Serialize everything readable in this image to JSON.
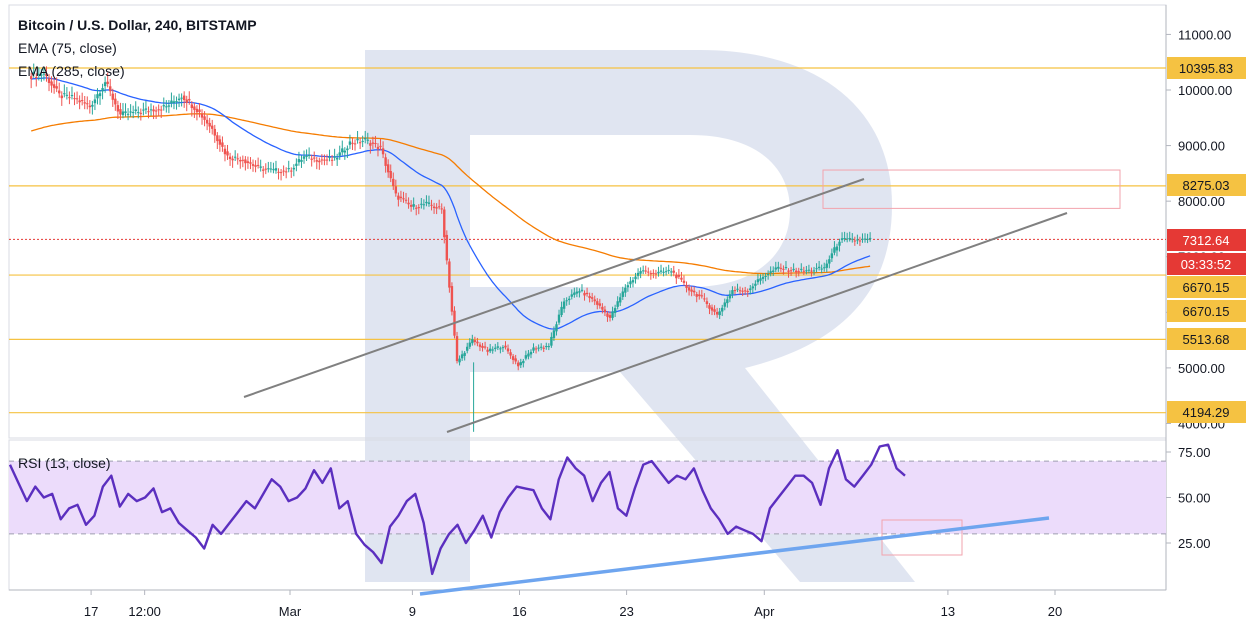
{
  "legend": {
    "symbol": "Bitcoin / U.S. Dollar, 240, BITSTAMP",
    "ema1": "EMA (75, close)",
    "ema2": "EMA (285, close)",
    "rsi": "RSI (13, close)"
  },
  "colors": {
    "up": "#26a69a",
    "down": "#ef5350",
    "ema75": "#2962ff",
    "ema285": "#f57c00",
    "level": "#f5c242",
    "current": "#e53935",
    "channel": "#808080",
    "rsi_line": "#5b2fbf",
    "rsi_band": "#ecdcfb",
    "rsi_trend": "#6ea5ef",
    "target_box": "#f2a3ad",
    "watermark": "#d6dcec"
  },
  "chart_data": [
    {
      "type": "candlestick",
      "title": "Bitcoin / U.S. Dollar, 240, BITSTAMP",
      "y_axis_ticks": [
        "11000.00",
        "10000.00",
        "9000.00",
        "8000.00",
        "7000.00",
        "6000.00",
        "5000.00",
        "4000.00"
      ],
      "ylim": [
        3900,
        11300
      ],
      "x_ticks": [
        "17",
        "12:00",
        "Mar",
        "9",
        "16",
        "23",
        "Apr",
        "13",
        "20"
      ],
      "price_levels": [
        {
          "label": "10395.83",
          "value": 10395.83
        },
        {
          "label": "8275.03",
          "value": 8275.03
        },
        {
          "label": "6670.15",
          "value": 6670.15
        },
        {
          "label": "6670.15",
          "value": 6670.15
        },
        {
          "label": "5513.68",
          "value": 5513.68
        },
        {
          "label": "4194.29",
          "value": 4194.29
        }
      ],
      "current_price": {
        "label": "7312.64",
        "countdown": "03:33:52",
        "value": 7312.64
      },
      "series_close": [
        {
          "x": "Feb 13",
          "y": 10250
        },
        {
          "x": "Feb 14",
          "y": 10300
        },
        {
          "x": "Feb 15",
          "y": 9900
        },
        {
          "x": "Feb 16",
          "y": 9850
        },
        {
          "x": "Feb 17",
          "y": 9700
        },
        {
          "x": "Feb 18",
          "y": 10150
        },
        {
          "x": "Feb 19",
          "y": 9550
        },
        {
          "x": "Feb 20",
          "y": 9600
        },
        {
          "x": "Feb 21",
          "y": 9650
        },
        {
          "x": "Feb 22",
          "y": 9700
        },
        {
          "x": "Feb 23",
          "y": 9900
        },
        {
          "x": "Feb 24",
          "y": 9650
        },
        {
          "x": "Feb 25",
          "y": 9300
        },
        {
          "x": "Feb 26",
          "y": 8800
        },
        {
          "x": "Feb 27",
          "y": 8750
        },
        {
          "x": "Feb 28",
          "y": 8600
        },
        {
          "x": "Feb 29",
          "y": 8550
        },
        {
          "x": "Mar 1",
          "y": 8550
        },
        {
          "x": "Mar 2",
          "y": 8800
        },
        {
          "x": "Mar 3",
          "y": 8750
        },
        {
          "x": "Mar 4",
          "y": 8750
        },
        {
          "x": "Mar 5",
          "y": 9050
        },
        {
          "x": "Mar 6",
          "y": 9100
        },
        {
          "x": "Mar 7",
          "y": 8950
        },
        {
          "x": "Mar 8",
          "y": 8100
        },
        {
          "x": "Mar 9",
          "y": 7900
        },
        {
          "x": "Mar 10",
          "y": 7950
        },
        {
          "x": "Mar 11",
          "y": 7850
        },
        {
          "x": "Mar 12",
          "y": 5100
        },
        {
          "x": "Mar 13",
          "y": 5500
        },
        {
          "x": "Mar 14",
          "y": 5300
        },
        {
          "x": "Mar 15",
          "y": 5400
        },
        {
          "x": "Mar 16",
          "y": 5050
        },
        {
          "x": "Mar 17",
          "y": 5350
        },
        {
          "x": "Mar 18",
          "y": 5400
        },
        {
          "x": "Mar 19",
          "y": 6200
        },
        {
          "x": "Mar 20",
          "y": 6400
        },
        {
          "x": "Mar 21",
          "y": 6200
        },
        {
          "x": "Mar 22",
          "y": 5900
        },
        {
          "x": "Mar 23",
          "y": 6450
        },
        {
          "x": "Mar 24",
          "y": 6750
        },
        {
          "x": "Mar 25",
          "y": 6700
        },
        {
          "x": "Mar 26",
          "y": 6750
        },
        {
          "x": "Mar 27",
          "y": 6450
        },
        {
          "x": "Mar 28",
          "y": 6250
        },
        {
          "x": "Mar 29",
          "y": 5950
        },
        {
          "x": "Mar 30",
          "y": 6400
        },
        {
          "x": "Mar 31",
          "y": 6400
        },
        {
          "x": "Apr 1",
          "y": 6650
        },
        {
          "x": "Apr 2",
          "y": 6800
        },
        {
          "x": "Apr 3",
          "y": 6750
        },
        {
          "x": "Apr 4",
          "y": 6750
        },
        {
          "x": "Apr 5",
          "y": 6800
        },
        {
          "x": "Apr 6",
          "y": 7300
        },
        {
          "x": "Apr 7",
          "y": 7300
        },
        {
          "x": "Apr 8",
          "y": 7310
        }
      ]
    },
    {
      "type": "line",
      "title": "RSI (13, close)",
      "y_axis_ticks": [
        "75.00",
        "50.00",
        "25.00"
      ],
      "ylim": [
        0,
        88
      ],
      "band": [
        30,
        70
      ],
      "series": [
        {
          "name": "RSI (13, close)",
          "values": [
            68,
            58,
            48,
            56,
            50,
            52,
            38,
            44,
            46,
            35,
            40,
            56,
            62,
            45,
            52,
            48,
            50,
            55,
            42,
            44,
            36,
            32,
            28,
            22,
            35,
            30,
            36,
            42,
            48,
            44,
            52,
            60,
            56,
            48,
            50,
            55,
            65,
            58,
            66,
            44,
            48,
            30,
            24,
            20,
            14,
            34,
            40,
            48,
            52,
            36,
            8,
            22,
            30,
            35,
            25,
            32,
            40,
            28,
            42,
            50,
            56,
            55,
            54,
            44,
            38,
            60,
            72,
            66,
            62,
            48,
            58,
            64,
            44,
            40,
            55,
            68,
            70,
            64,
            58,
            62,
            60,
            66,
            54,
            44,
            38,
            30,
            34,
            32,
            30,
            26,
            44,
            50,
            56,
            62,
            62,
            58,
            46,
            66,
            76,
            60,
            56,
            62,
            68,
            78,
            79,
            66,
            62
          ]
        }
      ]
    }
  ]
}
